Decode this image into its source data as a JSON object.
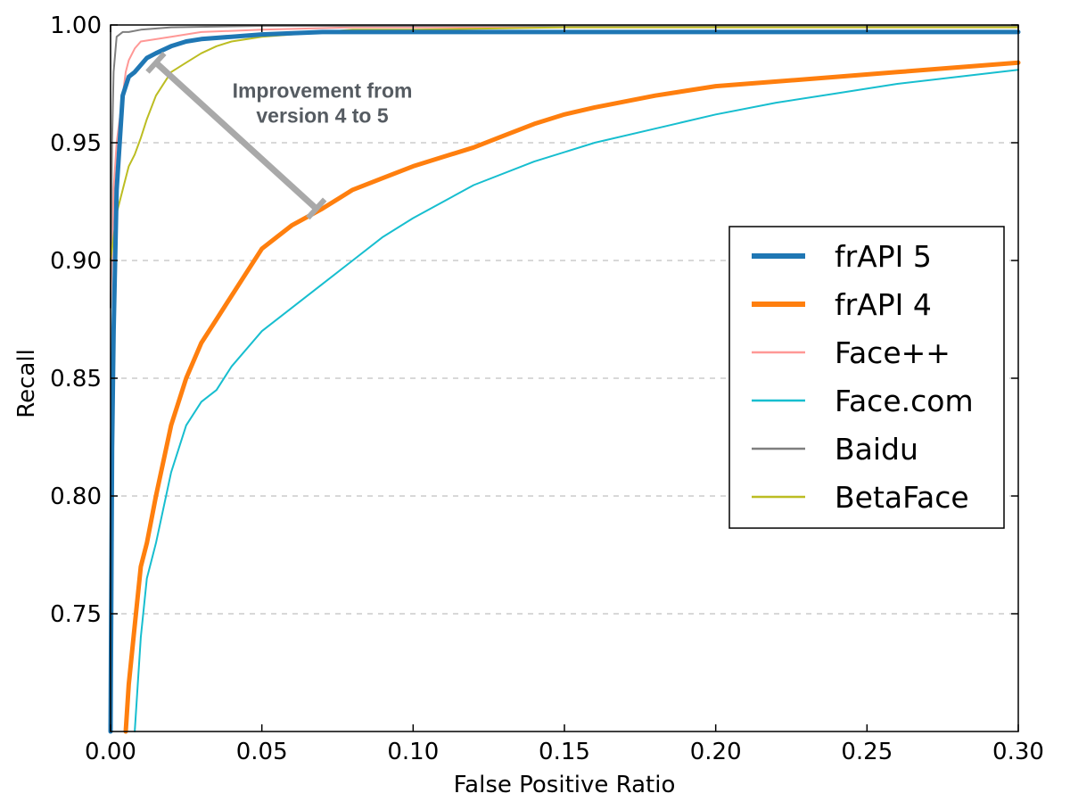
{
  "chart_data": {
    "type": "line",
    "title": "",
    "xlabel": "False Positive Ratio",
    "ylabel": "Recall",
    "xlim": [
      0.0,
      0.3
    ],
    "ylim": [
      0.7,
      1.0
    ],
    "x_ticks": [
      0.0,
      0.05,
      0.1,
      0.15,
      0.2,
      0.25,
      0.3
    ],
    "x_tick_labels": [
      "0.00",
      "0.05",
      "0.10",
      "0.15",
      "0.20",
      "0.25",
      "0.30"
    ],
    "y_ticks": [
      0.75,
      0.8,
      0.85,
      0.9,
      0.95,
      1.0
    ],
    "y_tick_labels": [
      "0.75",
      "0.80",
      "0.85",
      "0.90",
      "0.95",
      "1.00"
    ],
    "grid": "horizontal-dashed",
    "legend_position": "right",
    "series": [
      {
        "name": "frAPI 5",
        "color": "#1f77b4",
        "weight": "bold",
        "x": [
          0.0,
          0.0005,
          0.001,
          0.0015,
          0.002,
          0.003,
          0.004,
          0.006,
          0.008,
          0.01,
          0.012,
          0.015,
          0.02,
          0.025,
          0.03,
          0.04,
          0.05,
          0.07,
          0.1,
          0.15,
          0.2,
          0.25,
          0.3
        ],
        "y": [
          0.7,
          0.82,
          0.87,
          0.9,
          0.93,
          0.95,
          0.97,
          0.978,
          0.98,
          0.983,
          0.986,
          0.988,
          0.991,
          0.993,
          0.994,
          0.995,
          0.996,
          0.997,
          0.997,
          0.997,
          0.997,
          0.997,
          0.997
        ]
      },
      {
        "name": "frAPI 4",
        "color": "#ff7f0e",
        "weight": "bold",
        "x": [
          0.005,
          0.006,
          0.008,
          0.01,
          0.012,
          0.015,
          0.02,
          0.025,
          0.03,
          0.035,
          0.04,
          0.045,
          0.05,
          0.055,
          0.06,
          0.07,
          0.08,
          0.09,
          0.1,
          0.11,
          0.12,
          0.13,
          0.14,
          0.15,
          0.16,
          0.18,
          0.2,
          0.22,
          0.24,
          0.26,
          0.28,
          0.3
        ],
        "y": [
          0.7,
          0.72,
          0.745,
          0.77,
          0.78,
          0.8,
          0.83,
          0.85,
          0.865,
          0.875,
          0.885,
          0.895,
          0.905,
          0.91,
          0.915,
          0.922,
          0.93,
          0.935,
          0.94,
          0.944,
          0.948,
          0.953,
          0.958,
          0.962,
          0.965,
          0.97,
          0.974,
          0.976,
          0.978,
          0.98,
          0.982,
          0.984
        ]
      },
      {
        "name": "Face++",
        "color": "#ff9896",
        "weight": "thin",
        "x": [
          0.0,
          0.001,
          0.002,
          0.003,
          0.004,
          0.005,
          0.006,
          0.008,
          0.01,
          0.02,
          0.03,
          0.05,
          0.08,
          0.1,
          0.15,
          0.2,
          0.25,
          0.3
        ],
        "y": [
          0.88,
          0.93,
          0.95,
          0.96,
          0.97,
          0.98,
          0.985,
          0.99,
          0.993,
          0.995,
          0.997,
          0.998,
          0.999,
          0.999,
          0.999,
          0.999,
          0.999,
          0.999
        ]
      },
      {
        "name": "Face.com",
        "color": "#17becf",
        "weight": "thin",
        "x": [
          0.008,
          0.009,
          0.01,
          0.012,
          0.015,
          0.02,
          0.025,
          0.03,
          0.035,
          0.04,
          0.05,
          0.06,
          0.07,
          0.08,
          0.09,
          0.1,
          0.11,
          0.12,
          0.14,
          0.16,
          0.18,
          0.2,
          0.22,
          0.24,
          0.26,
          0.28,
          0.3
        ],
        "y": [
          0.7,
          0.72,
          0.74,
          0.765,
          0.78,
          0.81,
          0.83,
          0.84,
          0.845,
          0.855,
          0.87,
          0.88,
          0.89,
          0.9,
          0.91,
          0.918,
          0.925,
          0.932,
          0.942,
          0.95,
          0.956,
          0.962,
          0.967,
          0.971,
          0.975,
          0.978,
          0.981
        ]
      },
      {
        "name": "Baidu",
        "color": "#7f7f7f",
        "weight": "thin",
        "x": [
          0.0,
          0.0005,
          0.001,
          0.002,
          0.004,
          0.006,
          0.01,
          0.02,
          0.05,
          0.1,
          0.2,
          0.3
        ],
        "y": [
          0.88,
          0.95,
          0.98,
          0.995,
          0.997,
          0.997,
          0.998,
          0.999,
          1.0,
          1.0,
          1.0,
          1.0
        ]
      },
      {
        "name": "BetaFace",
        "color": "#bcbd22",
        "weight": "thin",
        "x": [
          0.0,
          0.002,
          0.004,
          0.006,
          0.008,
          0.01,
          0.012,
          0.015,
          0.02,
          0.025,
          0.03,
          0.035,
          0.04,
          0.05,
          0.06,
          0.08,
          0.1,
          0.15,
          0.2,
          0.3
        ],
        "y": [
          0.9,
          0.92,
          0.93,
          0.94,
          0.945,
          0.952,
          0.96,
          0.97,
          0.98,
          0.984,
          0.988,
          0.991,
          0.993,
          0.995,
          0.996,
          0.998,
          0.998,
          0.999,
          0.999,
          0.999
        ]
      }
    ],
    "annotation": {
      "text_line1": "Improvement from",
      "text_line2": "version 4 to 5",
      "color": "#a9a9a9",
      "from": [
        0.015,
        0.984
      ],
      "to": [
        0.068,
        0.922
      ],
      "text_at": [
        0.07,
        0.96
      ]
    }
  }
}
